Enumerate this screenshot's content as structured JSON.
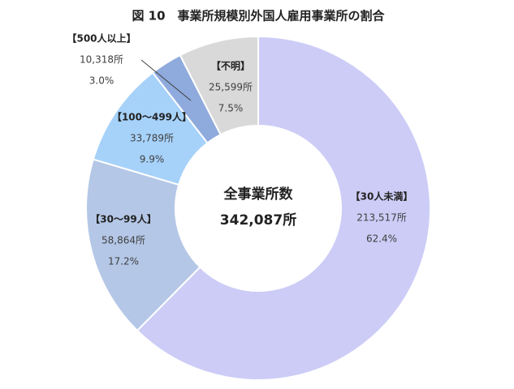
{
  "chart_data": {
    "type": "donut",
    "title": "図 10　事業所規模別外国人雇用事業所の割合",
    "categories": [
      "【30人未満】",
      "【30～99人】",
      "【100～499人】",
      "【500人以上】",
      "【不明】"
    ],
    "values": [
      62.4,
      17.2,
      9.9,
      3.0,
      7.5
    ],
    "value_labels": [
      "62.4%",
      "17.2%",
      "9.9%",
      "3.0%",
      "7.5%"
    ],
    "counts": [
      213517,
      58864,
      33789,
      10318,
      25599
    ],
    "count_labels": [
      "213,517所",
      "58,864所",
      "33,789所",
      "10,318所",
      "25,599所"
    ],
    "colors": [
      "#ccccf7",
      "#b4c7e7",
      "#a6d2fa",
      "#8faadc",
      "#d9d9d9"
    ],
    "center_label": "全事業所数",
    "center_value": 342087,
    "center_value_label": "342,087所"
  }
}
